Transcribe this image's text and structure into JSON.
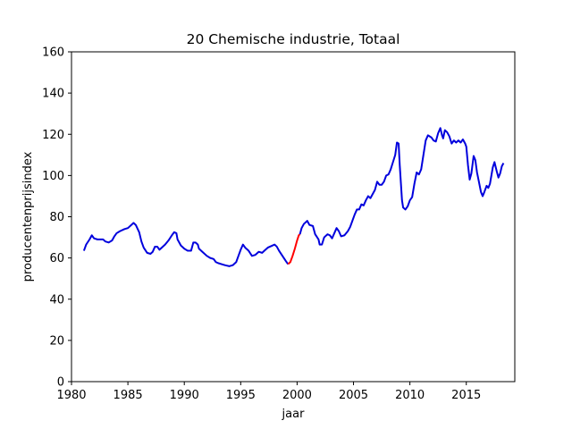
{
  "chart_data": {
    "type": "line",
    "title": "20 Chemische industrie, Totaal",
    "xlabel": "jaar",
    "ylabel": "producentenprijsindex",
    "xlim": [
      1980,
      2019.3
    ],
    "ylim": [
      0,
      160
    ],
    "xticks": [
      1980,
      1985,
      1990,
      1995,
      2000,
      2005,
      2010,
      2015
    ],
    "yticks": [
      0,
      20,
      40,
      60,
      80,
      100,
      120,
      140,
      160
    ],
    "grid": false,
    "legend": "none",
    "series": [
      {
        "color": "#0000dd",
        "points": [
          [
            1981.1,
            63.5
          ],
          [
            1981.3,
            66.5
          ],
          [
            1981.6,
            69
          ],
          [
            1981.8,
            71
          ],
          [
            1982.0,
            69.5
          ],
          [
            1982.3,
            69
          ],
          [
            1982.8,
            69
          ],
          [
            1983.0,
            68
          ],
          [
            1983.3,
            67.5
          ],
          [
            1983.6,
            68.5
          ],
          [
            1983.8,
            70.5
          ],
          [
            1984.0,
            72
          ],
          [
            1984.3,
            73
          ],
          [
            1984.7,
            74
          ],
          [
            1985.0,
            74.5
          ],
          [
            1985.3,
            76
          ],
          [
            1985.5,
            77
          ],
          [
            1985.7,
            76
          ],
          [
            1986.0,
            72.5
          ],
          [
            1986.2,
            68
          ],
          [
            1986.4,
            65
          ],
          [
            1986.7,
            62.5
          ],
          [
            1987.0,
            62
          ],
          [
            1987.2,
            63
          ],
          [
            1987.4,
            65.5
          ],
          [
            1987.6,
            65.5
          ],
          [
            1987.8,
            64
          ],
          [
            1988.0,
            65
          ],
          [
            1988.3,
            66.5
          ],
          [
            1988.6,
            68.5
          ],
          [
            1988.9,
            71
          ],
          [
            1989.1,
            72.5
          ],
          [
            1989.3,
            72
          ],
          [
            1989.4,
            69
          ],
          [
            1989.7,
            66
          ],
          [
            1990.0,
            64.5
          ],
          [
            1990.3,
            63.5
          ],
          [
            1990.6,
            63.5
          ],
          [
            1990.8,
            67.5
          ],
          [
            1991.0,
            67.5
          ],
          [
            1991.2,
            66.5
          ],
          [
            1991.3,
            64.5
          ],
          [
            1991.6,
            63
          ],
          [
            1992.0,
            61
          ],
          [
            1992.3,
            60
          ],
          [
            1992.6,
            59.5
          ],
          [
            1992.8,
            58
          ],
          [
            1993.0,
            57.5
          ],
          [
            1993.3,
            57
          ],
          [
            1993.6,
            56.5
          ],
          [
            1994.0,
            56
          ],
          [
            1994.3,
            56.5
          ],
          [
            1994.6,
            58
          ],
          [
            1994.8,
            61
          ],
          [
            1995.0,
            64
          ],
          [
            1995.2,
            66.5
          ],
          [
            1995.4,
            65
          ],
          [
            1995.7,
            63.5
          ],
          [
            1996.0,
            61
          ],
          [
            1996.3,
            61.5
          ],
          [
            1996.6,
            63
          ],
          [
            1996.9,
            62.5
          ],
          [
            1997.1,
            63.5
          ],
          [
            1997.4,
            65
          ],
          [
            1997.8,
            66
          ],
          [
            1998.0,
            66.5
          ],
          [
            1998.2,
            65.5
          ],
          [
            1998.4,
            63.5
          ],
          [
            1998.7,
            61
          ],
          [
            1999.0,
            58.5
          ],
          [
            1999.2,
            57
          ]
        ]
      },
      {
        "color": "#ff0000",
        "points": [
          [
            1999.2,
            57
          ],
          [
            1999.4,
            58
          ],
          [
            1999.6,
            61
          ],
          [
            1999.8,
            64.5
          ],
          [
            2000.0,
            68.5
          ],
          [
            2000.15,
            71
          ],
          [
            2000.25,
            71.5
          ]
        ]
      },
      {
        "color": "#0000dd",
        "points": [
          [
            2000.25,
            71.5
          ],
          [
            2000.4,
            74.5
          ],
          [
            2000.6,
            76.5
          ],
          [
            2000.9,
            78
          ],
          [
            2001.1,
            76
          ],
          [
            2001.4,
            75.5
          ],
          [
            2001.6,
            71.5
          ],
          [
            2001.9,
            69
          ],
          [
            2002.0,
            66.5
          ],
          [
            2002.2,
            66.5
          ],
          [
            2002.4,
            70
          ],
          [
            2002.7,
            71.5
          ],
          [
            2002.9,
            71
          ],
          [
            2003.1,
            69.5
          ],
          [
            2003.3,
            72
          ],
          [
            2003.5,
            74.5
          ],
          [
            2003.7,
            73
          ],
          [
            2003.9,
            70.5
          ],
          [
            2004.2,
            71
          ],
          [
            2004.5,
            73
          ],
          [
            2004.7,
            75
          ],
          [
            2004.9,
            78
          ],
          [
            2005.1,
            81
          ],
          [
            2005.3,
            83.5
          ],
          [
            2005.5,
            83.5
          ],
          [
            2005.7,
            86
          ],
          [
            2005.9,
            85.5
          ],
          [
            2006.1,
            88
          ],
          [
            2006.3,
            90
          ],
          [
            2006.5,
            89
          ],
          [
            2006.7,
            91
          ],
          [
            2006.9,
            93
          ],
          [
            2007.1,
            97
          ],
          [
            2007.3,
            95.5
          ],
          [
            2007.5,
            95.5
          ],
          [
            2007.7,
            97
          ],
          [
            2007.9,
            100
          ],
          [
            2008.1,
            100.5
          ],
          [
            2008.3,
            103
          ],
          [
            2008.5,
            106.5
          ],
          [
            2008.7,
            110
          ],
          [
            2008.85,
            116
          ],
          [
            2009.0,
            115.5
          ],
          [
            2009.1,
            105
          ],
          [
            2009.3,
            88
          ],
          [
            2009.4,
            84.5
          ],
          [
            2009.6,
            83.5
          ],
          [
            2009.8,
            85
          ],
          [
            2010.0,
            88
          ],
          [
            2010.2,
            89.5
          ],
          [
            2010.4,
            96
          ],
          [
            2010.6,
            101.5
          ],
          [
            2010.8,
            100.5
          ],
          [
            2011.0,
            103
          ],
          [
            2011.2,
            110
          ],
          [
            2011.4,
            117
          ],
          [
            2011.6,
            119.5
          ],
          [
            2011.9,
            118.5
          ],
          [
            2012.1,
            117
          ],
          [
            2012.3,
            116.5
          ],
          [
            2012.5,
            120.5
          ],
          [
            2012.7,
            123
          ],
          [
            2012.85,
            119.5
          ],
          [
            2012.95,
            118
          ],
          [
            2013.1,
            122
          ],
          [
            2013.3,
            121
          ],
          [
            2013.5,
            119
          ],
          [
            2013.7,
            115.5
          ],
          [
            2013.9,
            117
          ],
          [
            2014.1,
            116
          ],
          [
            2014.3,
            117
          ],
          [
            2014.5,
            116
          ],
          [
            2014.7,
            117.5
          ],
          [
            2014.9,
            115.5
          ],
          [
            2015.0,
            114
          ],
          [
            2015.15,
            105
          ],
          [
            2015.3,
            98
          ],
          [
            2015.45,
            101
          ],
          [
            2015.65,
            109.5
          ],
          [
            2015.8,
            107.5
          ],
          [
            2015.95,
            101.5
          ],
          [
            2016.1,
            97.5
          ],
          [
            2016.3,
            92
          ],
          [
            2016.45,
            90
          ],
          [
            2016.6,
            92
          ],
          [
            2016.8,
            95
          ],
          [
            2016.95,
            94
          ],
          [
            2017.1,
            96
          ],
          [
            2017.35,
            104
          ],
          [
            2017.5,
            106.5
          ],
          [
            2017.7,
            102
          ],
          [
            2017.85,
            99
          ],
          [
            2018.0,
            101
          ],
          [
            2018.15,
            104.5
          ],
          [
            2018.3,
            106
          ]
        ]
      }
    ]
  }
}
